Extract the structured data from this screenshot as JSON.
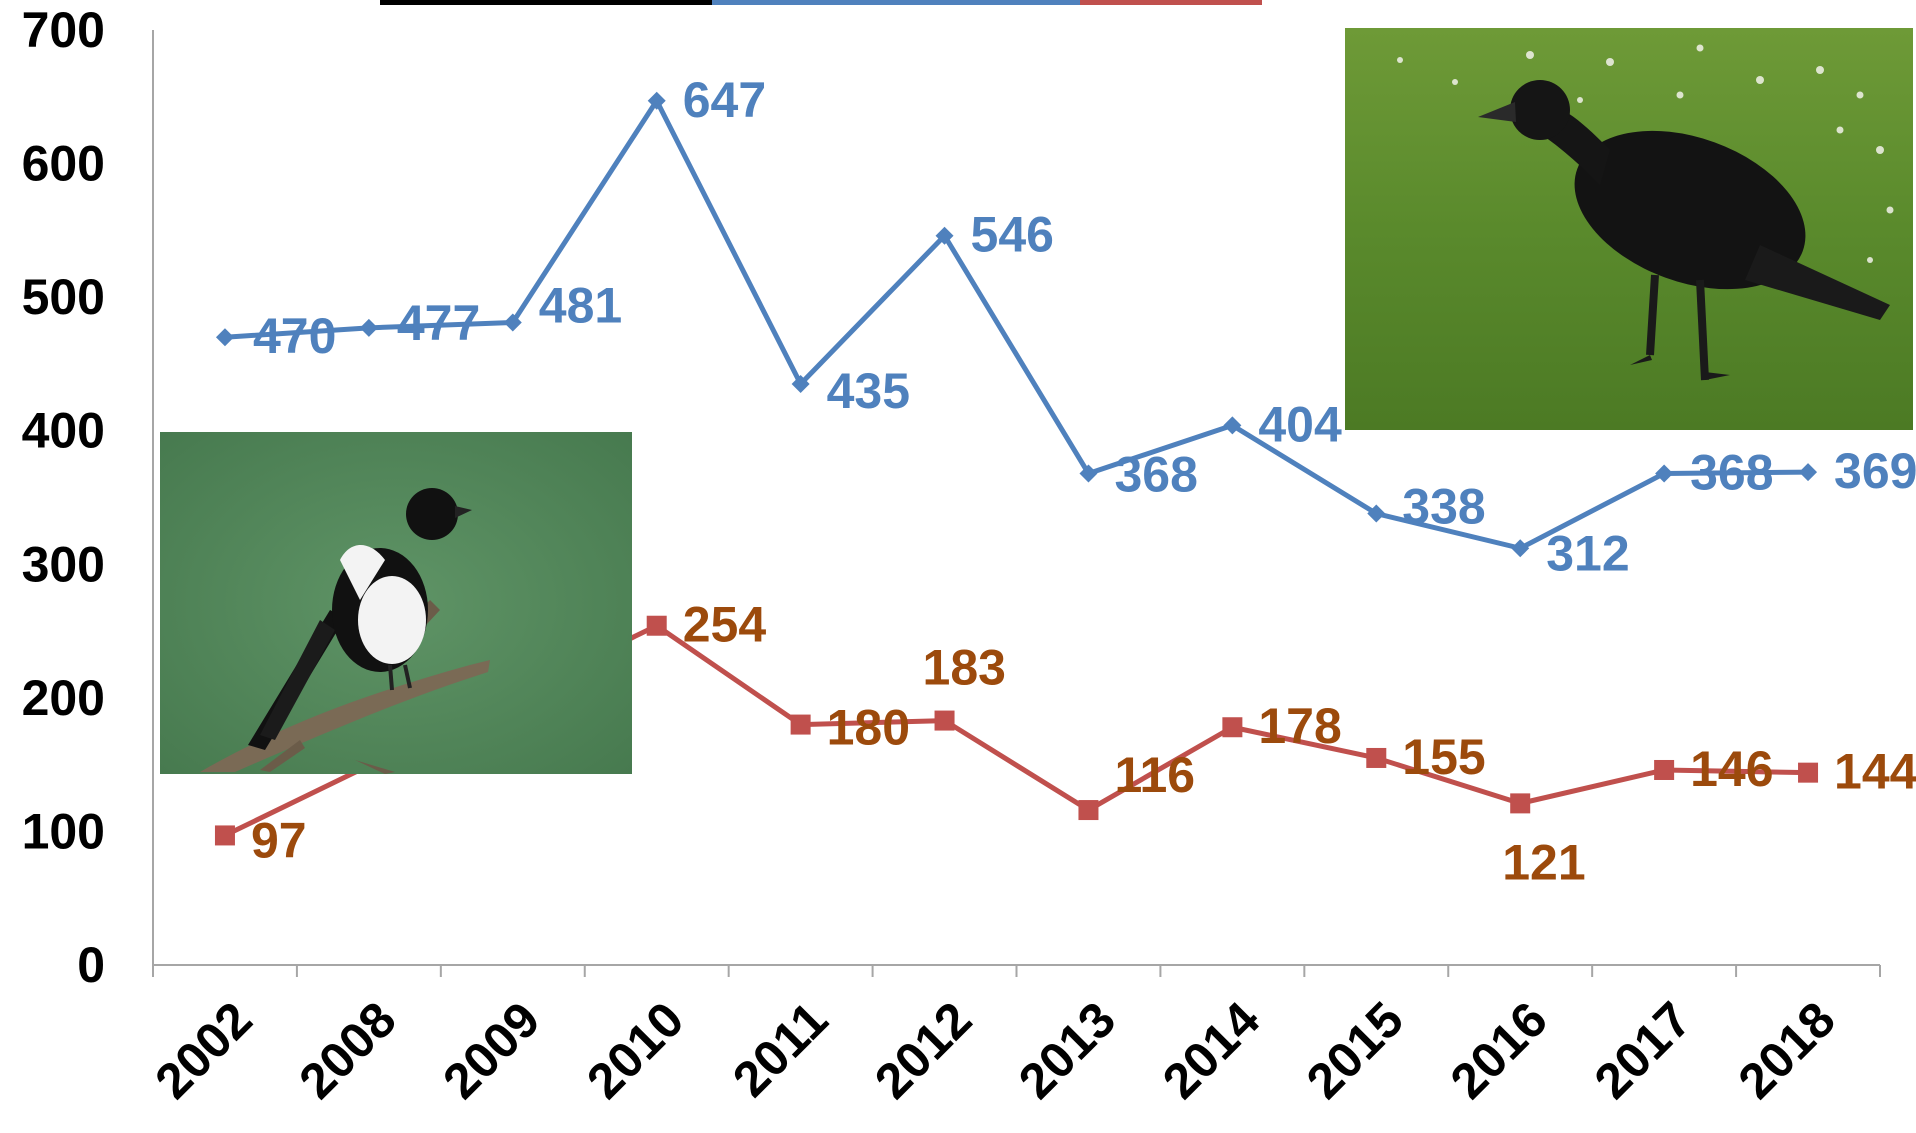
{
  "chart_data": {
    "type": "line",
    "categories": [
      "2002",
      "2008",
      "2009",
      "2010",
      "2011",
      "2012",
      "2013",
      "2014",
      "2015",
      "2016",
      "2017",
      "2018"
    ],
    "ylim": [
      0,
      700
    ],
    "yticks": [
      "0",
      "100",
      "200",
      "300",
      "400",
      "500",
      "600",
      "700"
    ],
    "grid": false,
    "series": [
      {
        "key": "crow",
        "line_color": "#4F81BD",
        "label_color": "#4F81BD",
        "marker": "diamond",
        "values": [
          470,
          477,
          481,
          647,
          435,
          546,
          368,
          404,
          338,
          312,
          368,
          369
        ],
        "labels": [
          "470",
          "477",
          "481",
          "647",
          "435",
          "546",
          "368",
          "404",
          "338",
          "312",
          "368",
          "369"
        ]
      },
      {
        "key": "magpie",
        "line_color": "#C0504D",
        "label_color": "#9C4A0C",
        "marker": "square",
        "values": [
          97,
          null,
          null,
          254,
          180,
          183,
          116,
          178,
          155,
          121,
          146,
          144
        ],
        "labels": [
          "97",
          "",
          "",
          "254",
          "180",
          "183",
          "116",
          "178",
          "155",
          "121",
          "146",
          "144"
        ]
      }
    ],
    "legend_swatch_colors": [
      "#000000",
      "#4F81BD",
      "#C0504D"
    ],
    "pictures": [
      "magpie-photo",
      "crow-photo"
    ]
  }
}
